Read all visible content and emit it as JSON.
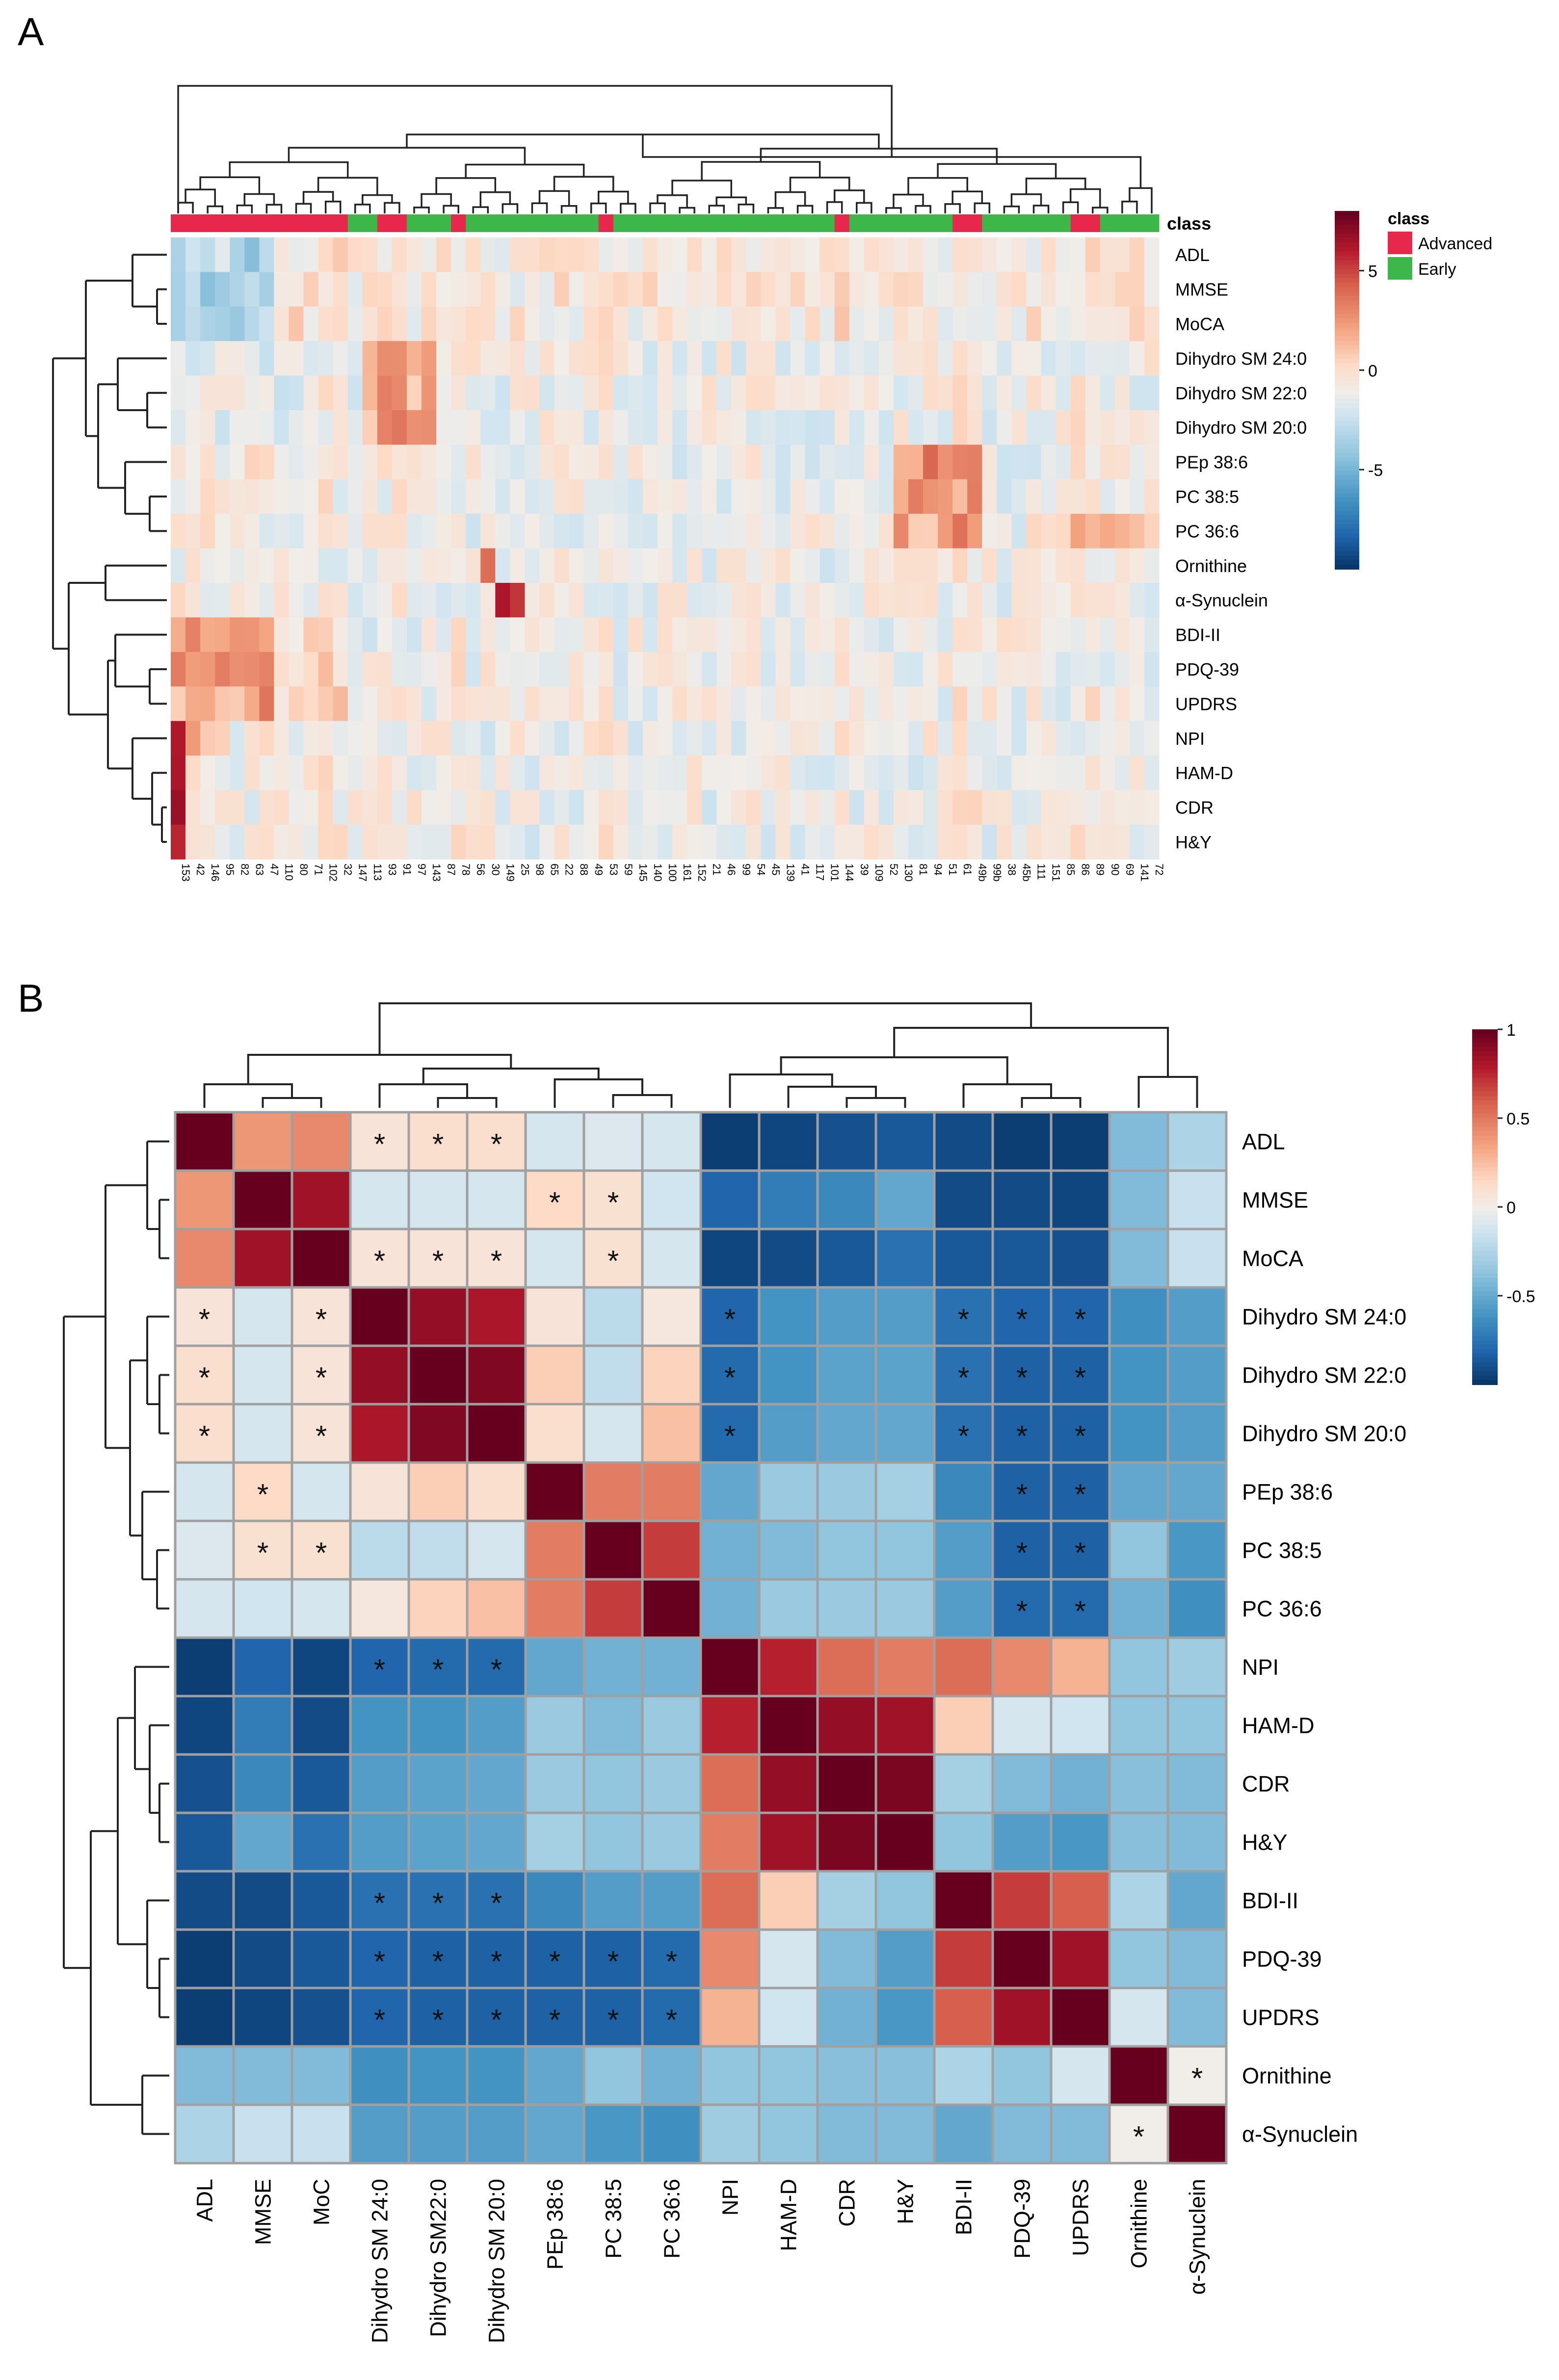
{
  "panels": {
    "a": {
      "label": "A"
    },
    "b": {
      "label": "B"
    }
  },
  "colors": {
    "neg": "#053061",
    "mid": "#f7f7f7",
    "pos": "#67001f",
    "advanced": "#e8274d",
    "early": "#3db64a",
    "grid": "#a0a0a0"
  },
  "chart_data": [
    {
      "type": "heatmap",
      "panel": "A",
      "title": "",
      "rows": [
        "ADL",
        "MMSE",
        "MoCA",
        "Dihydro SM 24:0",
        "Dihydro SM 22:0",
        "Dihydro SM 20:0",
        "PEp 38:6",
        "PC 38:5",
        "PC 36:6",
        "Ornithine",
        "α-Synuclein",
        "BDI-II",
        "PDQ-39",
        "UPDRS",
        "NPI",
        "HAM-D",
        "CDR",
        "H&Y"
      ],
      "columns": [
        "153",
        "42",
        "146",
        "95",
        "82",
        "63",
        "47",
        "110",
        "80",
        "71",
        "102",
        "32",
        "147",
        "113",
        "93",
        "91",
        "97",
        "143",
        "87",
        "78",
        "56",
        "30",
        "149",
        "25",
        "98",
        "65",
        "22",
        "88",
        "49",
        "53",
        "59",
        "145",
        "140",
        "100",
        "161",
        "152",
        "21",
        "46",
        "99",
        "54",
        "45",
        "139",
        "41",
        "117",
        "101",
        "144",
        "39",
        "109",
        "52",
        "130",
        "81",
        "94",
        "51",
        "61",
        "49b",
        "99b",
        "38",
        "45b",
        "111",
        "151",
        "85",
        "86",
        "89",
        "90",
        "69",
        "141",
        "72"
      ],
      "class_annotation": {
        "title": "class",
        "legend": [
          "Advanced",
          "Early"
        ],
        "advanced_column_indices": [
          0,
          1,
          2,
          3,
          4,
          5,
          6,
          7,
          8,
          9,
          10,
          11,
          14,
          15,
          19,
          29,
          45,
          53,
          54,
          61,
          62
        ]
      },
      "colorbar": {
        "ticks": [
          5,
          0,
          -5
        ],
        "range": [
          -10,
          8
        ]
      }
    },
    {
      "type": "heatmap",
      "panel": "B",
      "title": "",
      "rows": [
        "ADL",
        "MMSE",
        "MoCA",
        "Dihydro SM 24:0",
        "Dihydro SM 22:0",
        "Dihydro SM 20:0",
        "PEp 38:6",
        "PC 38:5",
        "PC 36:6",
        "NPI",
        "HAM-D",
        "CDR",
        "H&Y",
        "BDI-II",
        "PDQ-39",
        "UPDRS",
        "Ornithine",
        "α-Synuclein"
      ],
      "columns": [
        "ADL",
        "MMSE",
        "MoC",
        "Dihydro SM 24:0",
        "Dihydro SM22:0",
        "Dihydro SM 20:0",
        "PEp 38:6",
        "PC 38:5",
        "PC 36:6",
        "NPI",
        "HAM-D",
        "CDR",
        "H&Y",
        "BDI-II",
        "PDQ-39",
        "UPDRS",
        "Ornithine",
        "α-Synuclein"
      ],
      "values": [
        [
          1.0,
          0.4,
          0.45,
          0.08,
          0.12,
          0.12,
          -0.1,
          -0.08,
          -0.1,
          -0.95,
          -0.92,
          -0.88,
          -0.85,
          -0.9,
          -0.95,
          -0.95,
          -0.4,
          -0.25
        ],
        [
          0.4,
          1.0,
          0.85,
          -0.1,
          -0.1,
          -0.1,
          0.15,
          0.1,
          -0.12,
          -0.8,
          -0.7,
          -0.65,
          -0.5,
          -0.9,
          -0.9,
          -0.92,
          -0.4,
          -0.15
        ],
        [
          0.45,
          0.85,
          1.0,
          0.08,
          0.08,
          0.08,
          -0.1,
          0.1,
          -0.1,
          -0.92,
          -0.9,
          -0.85,
          -0.75,
          -0.85,
          -0.85,
          -0.88,
          -0.4,
          -0.15
        ],
        [
          0.08,
          -0.1,
          0.08,
          1.0,
          0.88,
          0.82,
          0.08,
          -0.2,
          0.05,
          -0.8,
          -0.6,
          -0.55,
          -0.55,
          -0.75,
          -0.8,
          -0.8,
          -0.62,
          -0.55
        ],
        [
          0.12,
          -0.1,
          0.08,
          0.88,
          1.0,
          0.93,
          0.2,
          -0.18,
          0.18,
          -0.78,
          -0.6,
          -0.52,
          -0.52,
          -0.75,
          -0.82,
          -0.82,
          -0.6,
          -0.55
        ],
        [
          0.12,
          -0.1,
          0.08,
          0.82,
          0.93,
          1.0,
          0.12,
          -0.1,
          0.25,
          -0.78,
          -0.55,
          -0.5,
          -0.5,
          -0.75,
          -0.82,
          -0.82,
          -0.6,
          -0.55
        ],
        [
          -0.1,
          0.15,
          -0.1,
          0.08,
          0.2,
          0.12,
          1.0,
          0.5,
          0.5,
          -0.5,
          -0.32,
          -0.32,
          -0.28,
          -0.65,
          -0.82,
          -0.82,
          -0.5,
          -0.5
        ],
        [
          -0.08,
          0.1,
          0.1,
          -0.2,
          -0.18,
          -0.1,
          0.5,
          1.0,
          0.7,
          -0.45,
          -0.4,
          -0.35,
          -0.35,
          -0.55,
          -0.82,
          -0.82,
          -0.35,
          -0.58
        ],
        [
          -0.1,
          -0.12,
          -0.1,
          0.05,
          0.18,
          0.25,
          0.5,
          0.7,
          1.0,
          -0.45,
          -0.32,
          -0.32,
          -0.32,
          -0.55,
          -0.78,
          -0.78,
          -0.45,
          -0.62
        ],
        [
          -0.95,
          -0.8,
          -0.92,
          -0.8,
          -0.78,
          -0.78,
          -0.5,
          -0.45,
          -0.45,
          1.0,
          0.78,
          0.55,
          0.5,
          0.55,
          0.45,
          0.3,
          -0.35,
          -0.3
        ],
        [
          -0.92,
          -0.7,
          -0.9,
          -0.6,
          -0.6,
          -0.55,
          -0.32,
          -0.4,
          -0.32,
          0.78,
          1.0,
          0.88,
          0.85,
          0.2,
          -0.1,
          -0.12,
          -0.35,
          -0.35
        ],
        [
          -0.88,
          -0.65,
          -0.85,
          -0.55,
          -0.52,
          -0.5,
          -0.32,
          -0.35,
          -0.32,
          0.55,
          0.88,
          1.0,
          0.95,
          -0.28,
          -0.4,
          -0.45,
          -0.38,
          -0.4
        ],
        [
          -0.85,
          -0.5,
          -0.75,
          -0.55,
          -0.52,
          -0.5,
          -0.28,
          -0.35,
          -0.32,
          0.5,
          0.85,
          0.95,
          1.0,
          -0.35,
          -0.55,
          -0.58,
          -0.38,
          -0.4
        ],
        [
          -0.9,
          -0.9,
          -0.85,
          -0.75,
          -0.75,
          -0.75,
          -0.65,
          -0.55,
          -0.55,
          0.55,
          0.2,
          -0.28,
          -0.35,
          1.0,
          0.7,
          0.6,
          -0.25,
          -0.5
        ],
        [
          -0.95,
          -0.9,
          -0.85,
          -0.8,
          -0.82,
          -0.82,
          -0.82,
          -0.82,
          -0.78,
          0.45,
          -0.1,
          -0.4,
          -0.55,
          0.7,
          1.0,
          0.85,
          -0.35,
          -0.4
        ],
        [
          -0.95,
          -0.92,
          -0.88,
          -0.8,
          -0.82,
          -0.82,
          -0.82,
          -0.82,
          -0.78,
          0.3,
          -0.12,
          -0.45,
          -0.58,
          0.6,
          0.85,
          1.0,
          -0.1,
          -0.4
        ],
        [
          -0.4,
          -0.4,
          -0.4,
          -0.62,
          -0.6,
          -0.6,
          -0.5,
          -0.35,
          -0.45,
          -0.35,
          -0.35,
          -0.38,
          -0.38,
          -0.25,
          -0.35,
          -0.1,
          1.0,
          0.0
        ],
        [
          -0.25,
          -0.15,
          -0.15,
          -0.55,
          -0.55,
          -0.55,
          -0.5,
          -0.58,
          -0.62,
          -0.3,
          -0.35,
          -0.4,
          -0.4,
          -0.5,
          -0.4,
          -0.4,
          0.0,
          1.0
        ]
      ],
      "significance": [
        [
          0,
          3
        ],
        [
          0,
          4
        ],
        [
          0,
          5
        ],
        [
          1,
          6
        ],
        [
          1,
          7
        ],
        [
          2,
          3
        ],
        [
          2,
          4
        ],
        [
          2,
          5
        ],
        [
          2,
          7
        ],
        [
          3,
          0
        ],
        [
          3,
          2
        ],
        [
          3,
          9
        ],
        [
          3,
          13
        ],
        [
          3,
          14
        ],
        [
          3,
          15
        ],
        [
          4,
          0
        ],
        [
          4,
          2
        ],
        [
          4,
          9
        ],
        [
          4,
          13
        ],
        [
          4,
          14
        ],
        [
          4,
          15
        ],
        [
          5,
          0
        ],
        [
          5,
          2
        ],
        [
          5,
          9
        ],
        [
          5,
          13
        ],
        [
          5,
          14
        ],
        [
          5,
          15
        ],
        [
          6,
          1
        ],
        [
          6,
          14
        ],
        [
          6,
          15
        ],
        [
          7,
          1
        ],
        [
          7,
          2
        ],
        [
          7,
          14
        ],
        [
          7,
          15
        ],
        [
          8,
          14
        ],
        [
          8,
          15
        ],
        [
          9,
          3
        ],
        [
          9,
          4
        ],
        [
          9,
          5
        ],
        [
          13,
          3
        ],
        [
          13,
          4
        ],
        [
          13,
          5
        ],
        [
          14,
          3
        ],
        [
          14,
          4
        ],
        [
          14,
          5
        ],
        [
          14,
          6
        ],
        [
          14,
          7
        ],
        [
          14,
          8
        ],
        [
          15,
          3
        ],
        [
          15,
          4
        ],
        [
          15,
          5
        ],
        [
          15,
          6
        ],
        [
          15,
          7
        ],
        [
          15,
          8
        ],
        [
          16,
          17
        ],
        [
          17,
          16
        ]
      ],
      "significance_marker": "*",
      "colorbar": {
        "ticks": [
          1,
          0.5,
          0,
          -0.5
        ],
        "range": [
          -1,
          1
        ]
      }
    }
  ]
}
